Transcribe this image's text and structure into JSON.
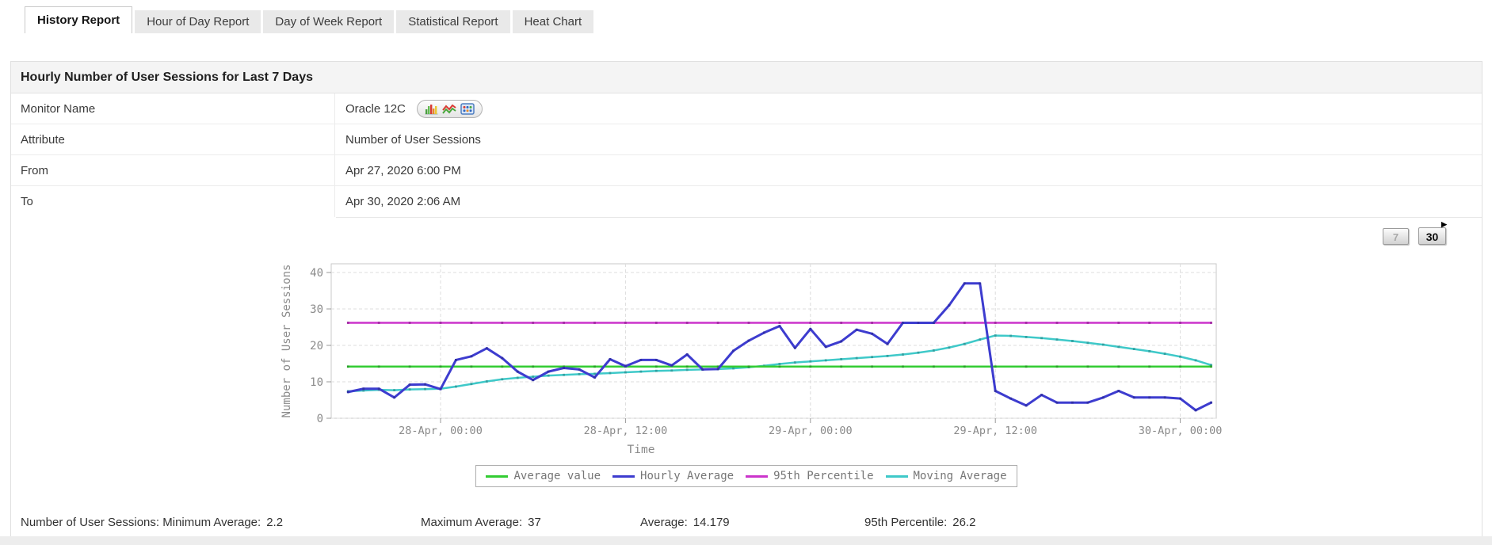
{
  "tabs": [
    {
      "label": "History Report",
      "active": true
    },
    {
      "label": "Hour of Day Report",
      "active": false
    },
    {
      "label": "Day of Week Report",
      "active": false
    },
    {
      "label": "Statistical Report",
      "active": false
    },
    {
      "label": "Heat Chart",
      "active": false
    }
  ],
  "report": {
    "title": "Hourly Number of User Sessions for Last 7 Days",
    "rows": [
      {
        "label": "Monitor Name",
        "value": "Oracle 12C"
      },
      {
        "label": "Attribute",
        "value": "Number of User Sessions"
      },
      {
        "label": "From",
        "value": "Apr 27, 2020 6:00 PM"
      },
      {
        "label": "To",
        "value": "Apr 30, 2020 2:06 AM"
      }
    ],
    "monitor_tool_icons": [
      "bar-chart-icon",
      "line-chart-icon",
      "data-table-icon"
    ]
  },
  "range_buttons": [
    {
      "label": "7",
      "enabled": false
    },
    {
      "label": "30",
      "enabled": true,
      "arrow_icon": "forward-arrow-icon"
    }
  ],
  "chart_data": {
    "type": "line",
    "ylabel": "Number of User Sessions",
    "xlabel": "Time",
    "ylim": [
      0,
      40
    ],
    "yticks": [
      0,
      10,
      20,
      30,
      40
    ],
    "grid": "dashed",
    "legend_position": "bottom-center",
    "t_start_hours": -6,
    "t_end_hours": 50,
    "xticks": [
      {
        "t": 0,
        "label": "28-Apr, 00:00"
      },
      {
        "t": 12,
        "label": "28-Apr, 12:00"
      },
      {
        "t": 24,
        "label": "29-Apr, 00:00"
      },
      {
        "t": 36,
        "label": "29-Apr, 12:00"
      },
      {
        "t": 48,
        "label": "30-Apr, 00:00"
      }
    ],
    "series": [
      {
        "name": "Average value",
        "color": "#33cc33",
        "constant": 14.179,
        "marker_every": 2
      },
      {
        "name": "Hourly Average",
        "color": "#3d3ccf",
        "marker_every": 1,
        "values": [
          7.2,
          8.1,
          8.1,
          5.7,
          9.2,
          9.3,
          8.0,
          16.0,
          17.0,
          19.2,
          16.5,
          12.8,
          10.5,
          12.8,
          13.8,
          13.4,
          11.2,
          16.2,
          14.3,
          16.0,
          16.0,
          14.5,
          17.5,
          13.4,
          13.5,
          18.5,
          21.3,
          23.5,
          25.3,
          19.3,
          24.5,
          19.6,
          21.1,
          24.3,
          23.2,
          20.4,
          26.2,
          26.2,
          26.2,
          31.0,
          37.0,
          37.0,
          7.5,
          5.4,
          3.5,
          6.4,
          4.3,
          4.3,
          4.3,
          5.7,
          7.5,
          5.7,
          5.7,
          5.7,
          5.4,
          2.2,
          4.3
        ]
      },
      {
        "name": "95th Percentile",
        "color": "#cb34cb",
        "constant": 26.2,
        "marker_every": 2
      },
      {
        "name": "Moving Average",
        "color": "#3fc9c9",
        "marker_every": 1,
        "values": [
          7.4,
          7.6,
          7.8,
          7.7,
          7.9,
          8.0,
          8.1,
          8.7,
          9.4,
          10.1,
          10.7,
          11.1,
          11.4,
          11.7,
          11.9,
          12.1,
          12.2,
          12.4,
          12.6,
          12.8,
          13.0,
          13.1,
          13.3,
          13.4,
          13.5,
          13.7,
          14.0,
          14.4,
          14.9,
          15.3,
          15.6,
          15.9,
          16.2,
          16.5,
          16.8,
          17.1,
          17.5,
          18.0,
          18.6,
          19.4,
          20.4,
          21.6,
          22.7,
          22.6,
          22.3,
          22.0,
          21.6,
          21.2,
          20.7,
          20.2,
          19.6,
          19.0,
          18.4,
          17.7,
          16.9,
          15.9,
          14.6
        ]
      }
    ],
    "draw_order": [
      "Moving Average",
      "Average value",
      "95th Percentile",
      "Hourly Average"
    ]
  },
  "stats": {
    "attribute_prefix": "Number of User Sessions:",
    "items": [
      {
        "label": "Minimum Average:",
        "value": "2.2"
      },
      {
        "label": "Maximum Average:",
        "value": "37"
      },
      {
        "label": "Average:",
        "value": "14.179"
      },
      {
        "label": "95th Percentile:",
        "value": "26.2"
      }
    ]
  }
}
